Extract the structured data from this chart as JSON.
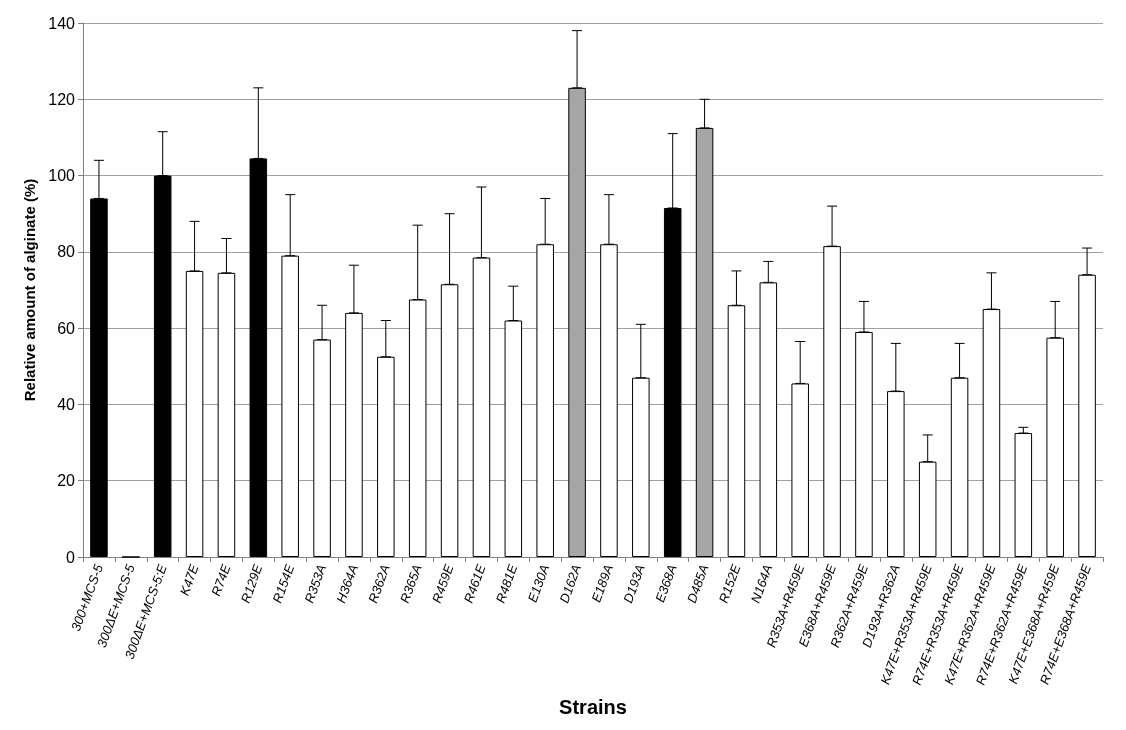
{
  "chart_data": {
    "type": "bar",
    "xlabel": "Strains",
    "ylabel": "Relative amount of alginate (%)",
    "categories": [
      "300+MCS-5",
      "300ΔE+MCS-5",
      "300ΔE+MCS-5:E",
      "K47E",
      "R74E",
      "R129E",
      "R154E",
      "R353A",
      "H364A",
      "R362A",
      "R365A",
      "R459E",
      "R461E",
      "R481E",
      "E130A",
      "D162A",
      "E189A",
      "D193A",
      "E368A",
      "D485A",
      "R152E",
      "N164A",
      "R353A+R459E",
      "E368A+R459E",
      "R362A+R459E",
      "D193A+R362A",
      "K47E+R353A+R459E",
      "R74E+R353A+R459E",
      "K47E+R362A+R459E",
      "R74E+R362A+R459E",
      "K47E+E368A+R459E",
      "R74E+E368A+R459E"
    ],
    "values": [
      94,
      0,
      100,
      75,
      74.5,
      104.5,
      79,
      57,
      64,
      52.5,
      67.5,
      71.5,
      78.5,
      62,
      82,
      123,
      82,
      47,
      91.5,
      112.5,
      66,
      72,
      45.5,
      81.5,
      59,
      43.5,
      25,
      47,
      65,
      32.5,
      57.5,
      74
    ],
    "errors": [
      [
        94,
        104
      ],
      null,
      [
        100,
        111.5
      ],
      [
        75,
        88
      ],
      [
        74.5,
        83.5
      ],
      [
        104.5,
        123
      ],
      [
        79,
        95
      ],
      [
        57,
        66
      ],
      [
        64,
        76.5
      ],
      [
        52.5,
        62
      ],
      [
        67.5,
        87
      ],
      [
        71.5,
        90
      ],
      [
        78.5,
        97
      ],
      [
        62,
        71
      ],
      [
        82,
        94
      ],
      [
        123,
        138
      ],
      [
        82,
        95
      ],
      [
        47,
        61
      ],
      [
        91.5,
        111
      ],
      [
        112.5,
        120
      ],
      [
        66,
        75
      ],
      [
        72,
        77.5
      ],
      [
        45.5,
        56.5
      ],
      [
        81.5,
        92
      ],
      [
        59,
        67
      ],
      [
        43.5,
        56
      ],
      [
        25,
        32
      ],
      [
        47,
        56
      ],
      [
        65,
        74.5
      ],
      [
        32.5,
        34
      ],
      [
        57.5,
        67
      ],
      [
        74,
        81
      ]
    ],
    "colors": [
      "#000000",
      "#000000",
      "#000000",
      "#ffffff",
      "#ffffff",
      "#000000",
      "#ffffff",
      "#ffffff",
      "#ffffff",
      "#ffffff",
      "#ffffff",
      "#ffffff",
      "#ffffff",
      "#ffffff",
      "#ffffff",
      "#a6a6a6",
      "#ffffff",
      "#ffffff",
      "#000000",
      "#a6a6a6",
      "#ffffff",
      "#ffffff",
      "#ffffff",
      "#ffffff",
      "#ffffff",
      "#ffffff",
      "#ffffff",
      "#ffffff",
      "#ffffff",
      "#ffffff",
      "#ffffff",
      "#ffffff"
    ],
    "ylim": [
      0,
      140
    ],
    "yticks": [
      0,
      20,
      40,
      60,
      80,
      100,
      120,
      140
    ],
    "grid": "y"
  }
}
